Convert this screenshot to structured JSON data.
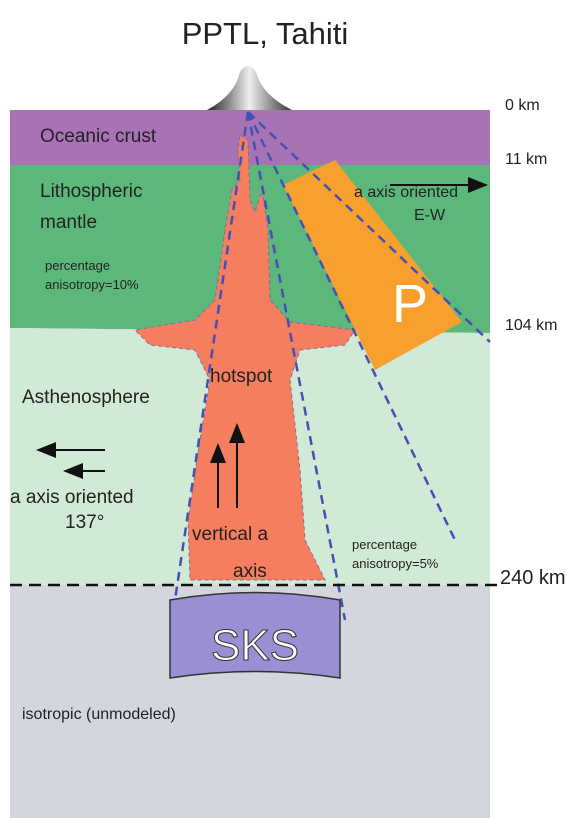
{
  "title": "PPTL, Tahiti",
  "depths": [
    "0 km",
    "11 km",
    "104 km",
    "240 km"
  ],
  "layers": {
    "crust": "Oceanic crust",
    "lithosphere": [
      "Lithospheric",
      "mantle"
    ],
    "asthenosphere": "Asthenosphere",
    "lower": "isotropic (unmodeled)"
  },
  "annotations": {
    "litho_anisotropy": [
      "percentage",
      "anisotropy=10%"
    ],
    "p_axis": [
      "a axis oriented",
      "E-W"
    ],
    "p_label": "P",
    "hotspot": "hotspot",
    "astheno_axis": [
      "a axis oriented",
      "137°"
    ],
    "vertical_axis": [
      "vertical a",
      "axis"
    ],
    "astheno_anisotropy": [
      "percentage",
      "anisotropy=5%"
    ],
    "sks": "SKS"
  }
}
